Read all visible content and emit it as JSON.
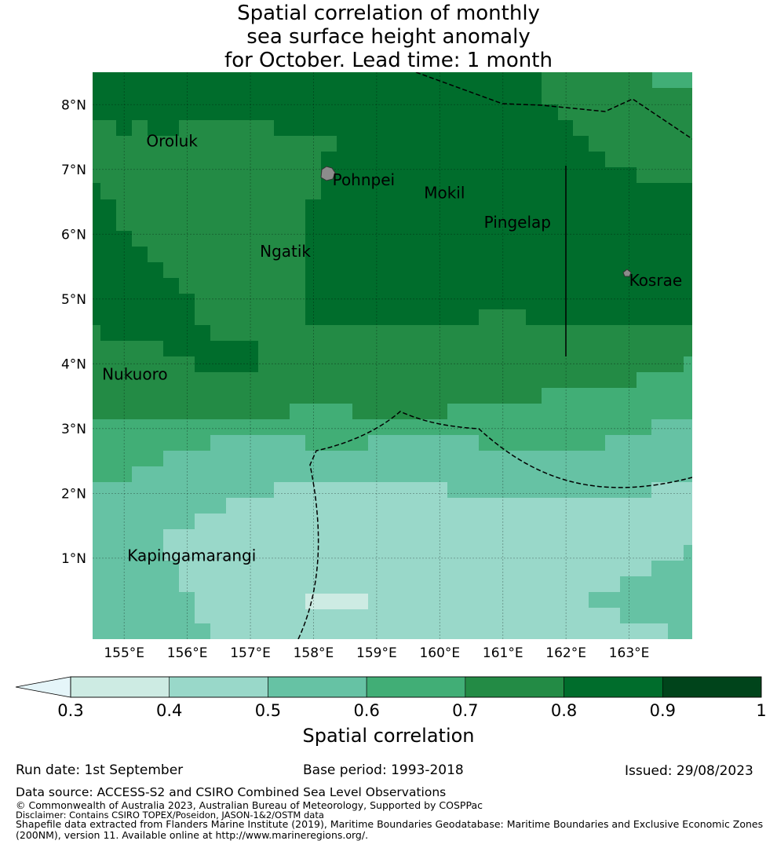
{
  "title": {
    "line1": "Spatial correlation of monthly",
    "line2": "sea surface height anomaly",
    "line3": "for October. Lead time: 1 month"
  },
  "map": {
    "lon_range": [
      154.5,
      164.0
    ],
    "lat_range": [
      -0.25,
      8.5
    ],
    "lon_ticks": [
      {
        "value": 155,
        "label": "155°E"
      },
      {
        "value": 156,
        "label": "156°E"
      },
      {
        "value": 157,
        "label": "157°E"
      },
      {
        "value": 158,
        "label": "158°E"
      },
      {
        "value": 159,
        "label": "159°E"
      },
      {
        "value": 160,
        "label": "160°E"
      },
      {
        "value": 161,
        "label": "161°E"
      },
      {
        "value": 162,
        "label": "162°E"
      },
      {
        "value": 163,
        "label": "163°E"
      }
    ],
    "lat_ticks": [
      {
        "value": 1,
        "label": "1°N"
      },
      {
        "value": 2,
        "label": "2°N"
      },
      {
        "value": 3,
        "label": "3°N"
      },
      {
        "value": 4,
        "label": "4°N"
      },
      {
        "value": 5,
        "label": "5°N"
      },
      {
        "value": 6,
        "label": "6°N"
      },
      {
        "value": 7,
        "label": "7°N"
      },
      {
        "value": 8,
        "label": "8°N"
      }
    ],
    "places": [
      {
        "name": "Oroluk",
        "lon": 155.35,
        "lat": 7.45
      },
      {
        "name": "Pohnpei",
        "lon": 158.3,
        "lat": 6.85
      },
      {
        "name": "Mokil",
        "lon": 159.75,
        "lat": 6.65
      },
      {
        "name": "Pingelap",
        "lon": 160.7,
        "lat": 6.2
      },
      {
        "name": "Ngatik",
        "lon": 157.15,
        "lat": 5.75
      },
      {
        "name": "Kosrae",
        "lon": 163.0,
        "lat": 5.3
      },
      {
        "name": "Nukuoro",
        "lon": 154.65,
        "lat": 3.85
      },
      {
        "name": "Kapingamarangi",
        "lon": 155.05,
        "lat": 1.05
      }
    ],
    "colors": {
      "c_03_04": "#cdebe3",
      "c_04_05": "#99d8c9",
      "c_05_06": "#66c2a4",
      "c_06_07": "#41ae76",
      "c_07_08": "#238b45",
      "c_08_09": "#006d2c",
      "c_09_10": "#00441b",
      "c_under": "#e5f5f9",
      "land": "#8c8c8c"
    }
  },
  "colorbar": {
    "ticks": [
      {
        "value": 0.3,
        "label": "0.3"
      },
      {
        "value": 0.4,
        "label": "0.4"
      },
      {
        "value": 0.5,
        "label": "0.5"
      },
      {
        "value": 0.6,
        "label": "0.6"
      },
      {
        "value": 0.7,
        "label": "0.7"
      },
      {
        "value": 0.8,
        "label": "0.8"
      },
      {
        "value": 0.9,
        "label": "0.9"
      },
      {
        "value": 1.0,
        "label": "1"
      }
    ],
    "title": "Spatial correlation"
  },
  "footer": {
    "run_date": "Run date: 1st September",
    "base_period": "Base period: 1993-2018",
    "issued": "Issued: 29/08/2023",
    "data_source": "Data source: ACCESS-S2 and CSIRO Combined Sea Level Observations",
    "copyright": "© Commonwealth of Australia 2023, Australian Bureau of Meteorology, Supported by COSPPac",
    "disclaimer": "Disclaimer: Contains CSIRO TOPEX/Poseidon, JASON-1&2/OSTM data",
    "shapefile1": "Shapefile data extracted from Flanders Marine Institute (2019), Maritime Boundaries Geodatabase: Maritime Boundaries and Exclusive Economic Zones",
    "shapefile2": "(200NM), version 11. Available online at http://www.marineregions.org/."
  }
}
